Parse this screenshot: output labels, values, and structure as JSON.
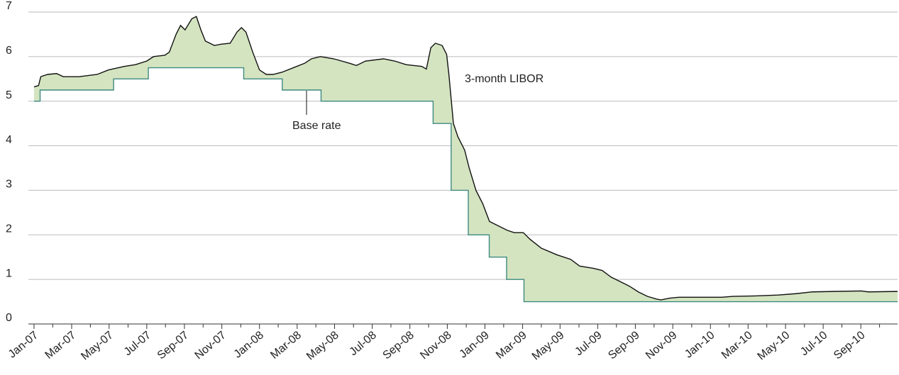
{
  "chart_data": {
    "type": "line",
    "ylim": [
      0,
      7
    ],
    "yticks": [
      0,
      1,
      2,
      3,
      4,
      5,
      6,
      7
    ],
    "grid": true,
    "xlim": [
      2006.975,
      2010.83
    ],
    "xticks": [
      {
        "value": 2007,
        "label": "Jan-07"
      },
      {
        "value": 2007.167,
        "label": "Mar-07"
      },
      {
        "value": 2007.333,
        "label": "May-07"
      },
      {
        "value": 2007.5,
        "label": "Jul-07"
      },
      {
        "value": 2007.667,
        "label": "Sep-07"
      },
      {
        "value": 2007.833,
        "label": "Nov-07"
      },
      {
        "value": 2008,
        "label": "Jan-08"
      },
      {
        "value": 2008.167,
        "label": "Mar-08"
      },
      {
        "value": 2008.333,
        "label": "May-08"
      },
      {
        "value": 2008.5,
        "label": "Jul-08"
      },
      {
        "value": 2008.667,
        "label": "Sep-08"
      },
      {
        "value": 2008.833,
        "label": "Nov-08"
      },
      {
        "value": 2009,
        "label": "Jan-09"
      },
      {
        "value": 2009.167,
        "label": "Mar-09"
      },
      {
        "value": 2009.333,
        "label": "May-09"
      },
      {
        "value": 2009.5,
        "label": "Jul-09"
      },
      {
        "value": 2009.667,
        "label": "Sep-09"
      },
      {
        "value": 2009.833,
        "label": "Nov-09"
      },
      {
        "value": 2010,
        "label": "Jan-10"
      },
      {
        "value": 2010.167,
        "label": "Mar-10"
      },
      {
        "value": 2010.333,
        "label": "May-10"
      },
      {
        "value": 2010.5,
        "label": "Jul-10"
      },
      {
        "value": 2010.667,
        "label": "Sep-10"
      }
    ],
    "xminorticks": [
      2007.083,
      2007.25,
      2007.417,
      2007.583,
      2007.75,
      2007.917,
      2008.083,
      2008.25,
      2008.417,
      2008.583,
      2008.75,
      2008.917,
      2009.083,
      2009.25,
      2009.417,
      2009.583,
      2009.75,
      2009.917,
      2010.083,
      2010.25,
      2010.417,
      2010.583,
      2010.75
    ],
    "fill_color": "#d4e4c0",
    "series": [
      {
        "name": "3-month LIBOR",
        "color": "#111111",
        "x": [
          2007,
          2007.02,
          2007.03,
          2007.06,
          2007.1,
          2007.13,
          2007.2,
          2007.28,
          2007.33,
          2007.4,
          2007.45,
          2007.5,
          2007.53,
          2007.58,
          2007.6,
          2007.63,
          2007.65,
          2007.67,
          2007.7,
          2007.72,
          2007.74,
          2007.76,
          2007.8,
          2007.83,
          2007.87,
          2007.9,
          2007.92,
          2007.94,
          2007.97,
          2008,
          2008.03,
          2008.06,
          2008.1,
          2008.15,
          2008.2,
          2008.23,
          2008.27,
          2008.33,
          2008.4,
          2008.43,
          2008.47,
          2008.55,
          2008.6,
          2008.65,
          2008.72,
          2008.74,
          2008.76,
          2008.78,
          2008.81,
          2008.83,
          2008.84,
          2008.86,
          2008.88,
          2008.91,
          2008.93,
          2008.96,
          2008.99,
          2009.02,
          2009.06,
          2009.1,
          2009.13,
          2009.17,
          2009.2,
          2009.25,
          2009.32,
          2009.38,
          2009.42,
          2009.48,
          2009.52,
          2009.56,
          2009.6,
          2009.64,
          2009.68,
          2009.72,
          2009.76,
          2009.78,
          2009.82,
          2009.86,
          2009.95,
          2010.05,
          2010.1,
          2010.2,
          2010.3,
          2010.38,
          2010.45,
          2010.55,
          2010.67,
          2010.7,
          2010.83
        ],
        "values": [
          5.32,
          5.35,
          5.55,
          5.6,
          5.62,
          5.55,
          5.55,
          5.6,
          5.7,
          5.78,
          5.82,
          5.9,
          6.0,
          6.03,
          6.1,
          6.5,
          6.7,
          6.6,
          6.85,
          6.9,
          6.6,
          6.35,
          6.25,
          6.28,
          6.3,
          6.55,
          6.65,
          6.55,
          6.1,
          5.7,
          5.6,
          5.6,
          5.65,
          5.75,
          5.85,
          5.95,
          6.0,
          5.95,
          5.85,
          5.8,
          5.9,
          5.95,
          5.9,
          5.82,
          5.78,
          5.72,
          6.2,
          6.3,
          6.25,
          6.05,
          5.6,
          4.5,
          4.2,
          3.9,
          3.5,
          3.0,
          2.7,
          2.3,
          2.2,
          2.1,
          2.05,
          2.05,
          1.9,
          1.7,
          1.55,
          1.45,
          1.3,
          1.25,
          1.2,
          1.05,
          0.95,
          0.85,
          0.72,
          0.62,
          0.56,
          0.54,
          0.58,
          0.6,
          0.6,
          0.6,
          0.62,
          0.63,
          0.65,
          0.68,
          0.72,
          0.73,
          0.74,
          0.72,
          0.73
        ]
      },
      {
        "name": "Base rate",
        "color": "#3e8a80",
        "x": [
          2007,
          2007.027,
          2007.027,
          2007.353,
          2007.353,
          2007.507,
          2007.507,
          2007.93,
          2007.93,
          2008.101,
          2008.101,
          2008.273,
          2008.273,
          2008.77,
          2008.77,
          2008.85,
          2008.85,
          2008.926,
          2008.926,
          2009.019,
          2009.019,
          2009.096,
          2009.096,
          2009.173,
          2009.173,
          2010.83
        ],
        "values": [
          5,
          5,
          5.25,
          5.25,
          5.5,
          5.5,
          5.75,
          5.75,
          5.5,
          5.5,
          5.25,
          5.25,
          5,
          5,
          4.5,
          4.5,
          3,
          3,
          2,
          2,
          1.5,
          1.5,
          1,
          1,
          0.5,
          0.5
        ]
      }
    ]
  }
}
